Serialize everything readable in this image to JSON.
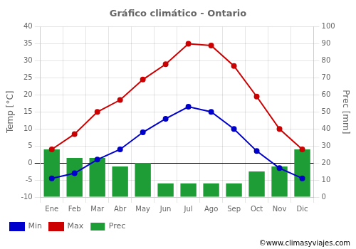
{
  "chart_data": {
    "type": "bar",
    "title": "Gráfico climático - Ontario",
    "categories": [
      "Ene",
      "Feb",
      "Mar",
      "Abr",
      "May",
      "Jun",
      "Jul",
      "Ago",
      "Sep",
      "Oct",
      "Nov",
      "Dic"
    ],
    "series": [
      {
        "name": "Prec",
        "type": "bar",
        "axis": "y2",
        "color": "#1e9c35",
        "values": [
          28,
          23,
          23,
          18,
          20,
          8,
          8,
          8,
          8,
          15,
          18,
          28
        ]
      },
      {
        "name": "Min",
        "type": "line",
        "color": "#0000cc",
        "marker": "circle",
        "values": [
          -4.5,
          -3.0,
          1.0,
          4.0,
          9.0,
          13.0,
          16.5,
          15.0,
          10.0,
          3.5,
          -1.5,
          -4.5
        ]
      },
      {
        "name": "Max",
        "type": "line",
        "color": "#cc0000",
        "marker": "circle",
        "values": [
          4.0,
          8.5,
          15.0,
          18.5,
          24.5,
          29.0,
          35.0,
          34.5,
          28.5,
          19.5,
          10.0,
          4.0
        ]
      }
    ],
    "ylabel": "Temp [°C]",
    "y2label": "Prec [mm]",
    "ylim": [
      -10,
      40
    ],
    "yticks": [
      -10,
      -5,
      0,
      5,
      10,
      15,
      20,
      25,
      30,
      35,
      40
    ],
    "y2lim": [
      0,
      100
    ],
    "y2ticks": [
      0,
      10,
      20,
      30,
      40,
      50,
      60,
      70,
      80,
      90,
      100
    ],
    "grid": true,
    "legend": "lower left",
    "annotation": "©www.climasyviajes.com"
  }
}
